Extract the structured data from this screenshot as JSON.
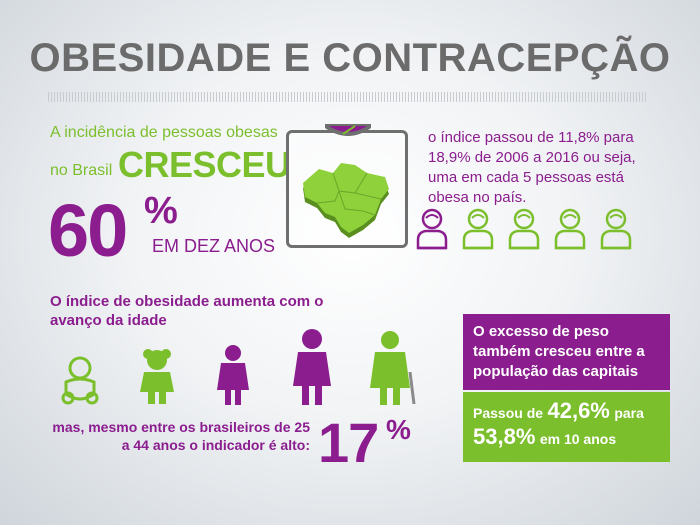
{
  "title": "OBESIDADE E CONTRACEPÇÃO",
  "incidence": {
    "line1": "A incidência de pessoas obesas",
    "line2": "no Brasil",
    "verb": "CRESCEU",
    "value": "60",
    "sign": "%",
    "period": "EM DEZ ANOS"
  },
  "index_stat": {
    "text": "o índice passou de 11,8% para 18,9% de 2006 a 2016 ou seja, uma em cada 5 pessoas está obesa no país.",
    "icons": [
      {
        "icon": "woman-icon",
        "color": "#8b1d8f"
      },
      {
        "icon": "woman-icon",
        "color": "#7cbf2d"
      },
      {
        "icon": "woman-icon",
        "color": "#7cbf2d"
      },
      {
        "icon": "woman-icon",
        "color": "#7cbf2d"
      },
      {
        "icon": "woman-icon",
        "color": "#7cbf2d"
      }
    ]
  },
  "age": {
    "heading": "O índice de obesidade aumenta com o avanço da idade",
    "figures": [
      "baby-icon",
      "child-icon",
      "teen-icon",
      "adult-icon",
      "elderly-icon"
    ],
    "adult_text": "mas, mesmo entre os brasileiros de 25 a 44 anos o indicador é alto:",
    "value": "17",
    "sign": "%"
  },
  "capitals": {
    "text": "O excesso de peso também cresceu entre a população das capitais",
    "prefix": "Passou de",
    "from": "42,6%",
    "middle": "para",
    "to": "53,8%",
    "suffix": "em 10 anos"
  },
  "colors": {
    "purple": "#8b1d8f",
    "green": "#7cbf2d",
    "gray": "#6b6b6b"
  }
}
